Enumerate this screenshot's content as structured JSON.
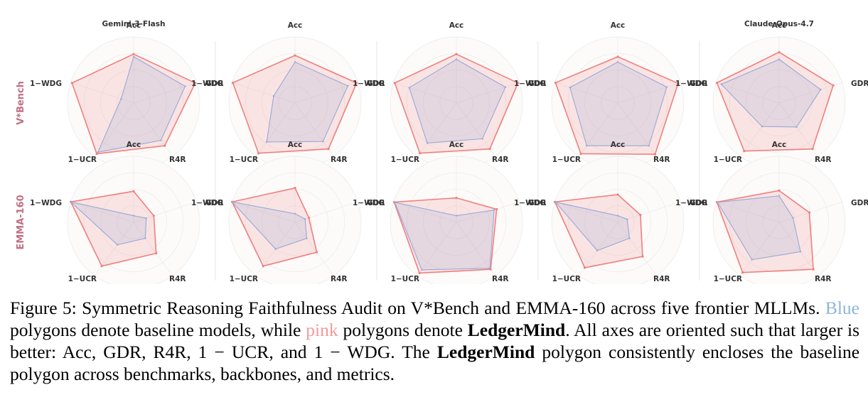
{
  "chart_data": {
    "type": "radar",
    "axes": [
      "Acc",
      "GDR",
      "R4R",
      "1−UCR",
      "1−WDG"
    ],
    "columns": [
      "Gemini-3-Flash",
      "",
      "",
      "",
      "Claude-Opus-4.7"
    ],
    "rows": [
      "V*Bench",
      "EMMA-160"
    ],
    "range": [
      0,
      1
    ],
    "grid": true,
    "colors": {
      "baseline": "#9aa8d8",
      "ledgermind": "#f07f7f",
      "row_label": "#c07085"
    },
    "panels": [
      [
        {
          "baseline": [
            0.7,
            0.82,
            0.7,
            0.92,
            0.2
          ],
          "ledgermind": [
            0.74,
            0.98,
            0.8,
            0.95,
            0.98
          ]
        },
        {
          "baseline": [
            0.62,
            0.84,
            0.72,
            0.73,
            0.34
          ],
          "ledgermind": [
            0.72,
            0.98,
            0.86,
            0.94,
            0.99
          ]
        },
        {
          "baseline": [
            0.66,
            0.78,
            0.67,
            0.75,
            0.75
          ],
          "ledgermind": [
            0.74,
            0.98,
            0.86,
            0.94,
            0.98
          ]
        },
        {
          "baseline": [
            0.62,
            0.78,
            0.8,
            0.8,
            0.76
          ],
          "ledgermind": [
            0.7,
            0.96,
            0.96,
            0.95,
            0.99
          ]
        },
        {
          "baseline": [
            0.66,
            0.66,
            0.45,
            0.44,
            0.92
          ],
          "ledgermind": [
            0.77,
            0.86,
            0.86,
            0.9,
            0.99
          ]
        }
      ],
      [
        {
          "baseline": [
            0.1,
            0.2,
            0.3,
            0.42,
            1.0
          ],
          "ledgermind": [
            0.47,
            0.32,
            0.58,
            0.82,
            1.0
          ]
        },
        {
          "baseline": [
            0.13,
            0.16,
            0.3,
            0.5,
            1.0
          ],
          "ledgermind": [
            0.52,
            0.22,
            0.56,
            0.82,
            1.0
          ]
        },
        {
          "baseline": [
            0.1,
            0.6,
            0.86,
            0.89,
            0.98
          ],
          "ledgermind": [
            0.37,
            0.64,
            0.88,
            0.95,
            0.99
          ]
        },
        {
          "baseline": [
            0.1,
            0.15,
            0.3,
            0.53,
            0.99
          ],
          "ledgermind": [
            0.42,
            0.36,
            0.64,
            0.85,
            1.0
          ]
        },
        {
          "baseline": [
            0.4,
            0.22,
            0.55,
            0.7,
            0.98
          ],
          "ledgermind": [
            0.48,
            0.48,
            0.88,
            0.94,
            0.99
          ]
        }
      ]
    ]
  },
  "caption": {
    "label": "Figure 5: Symmetric Reasoning Faithfulness Audit on V*Bench and EMMA-160 across five frontier MLLMs.",
    "blue_word": "Blue",
    "part2": "polygons denote baseline models, while",
    "pink_word": "pink",
    "part3": "polygons denote",
    "method": "LedgerMind",
    "part4": ". All axes are oriented such that larger is better: Acc, GDR, R4R,",
    "math_ucr": "1 − UCR",
    "part5": ", and",
    "math_wdg": "1 − WDG",
    "part6": ". The",
    "method2": "LedgerMind",
    "part7": "polygon consistently encloses the baseline polygon across benchmarks, backbones, and metrics."
  }
}
